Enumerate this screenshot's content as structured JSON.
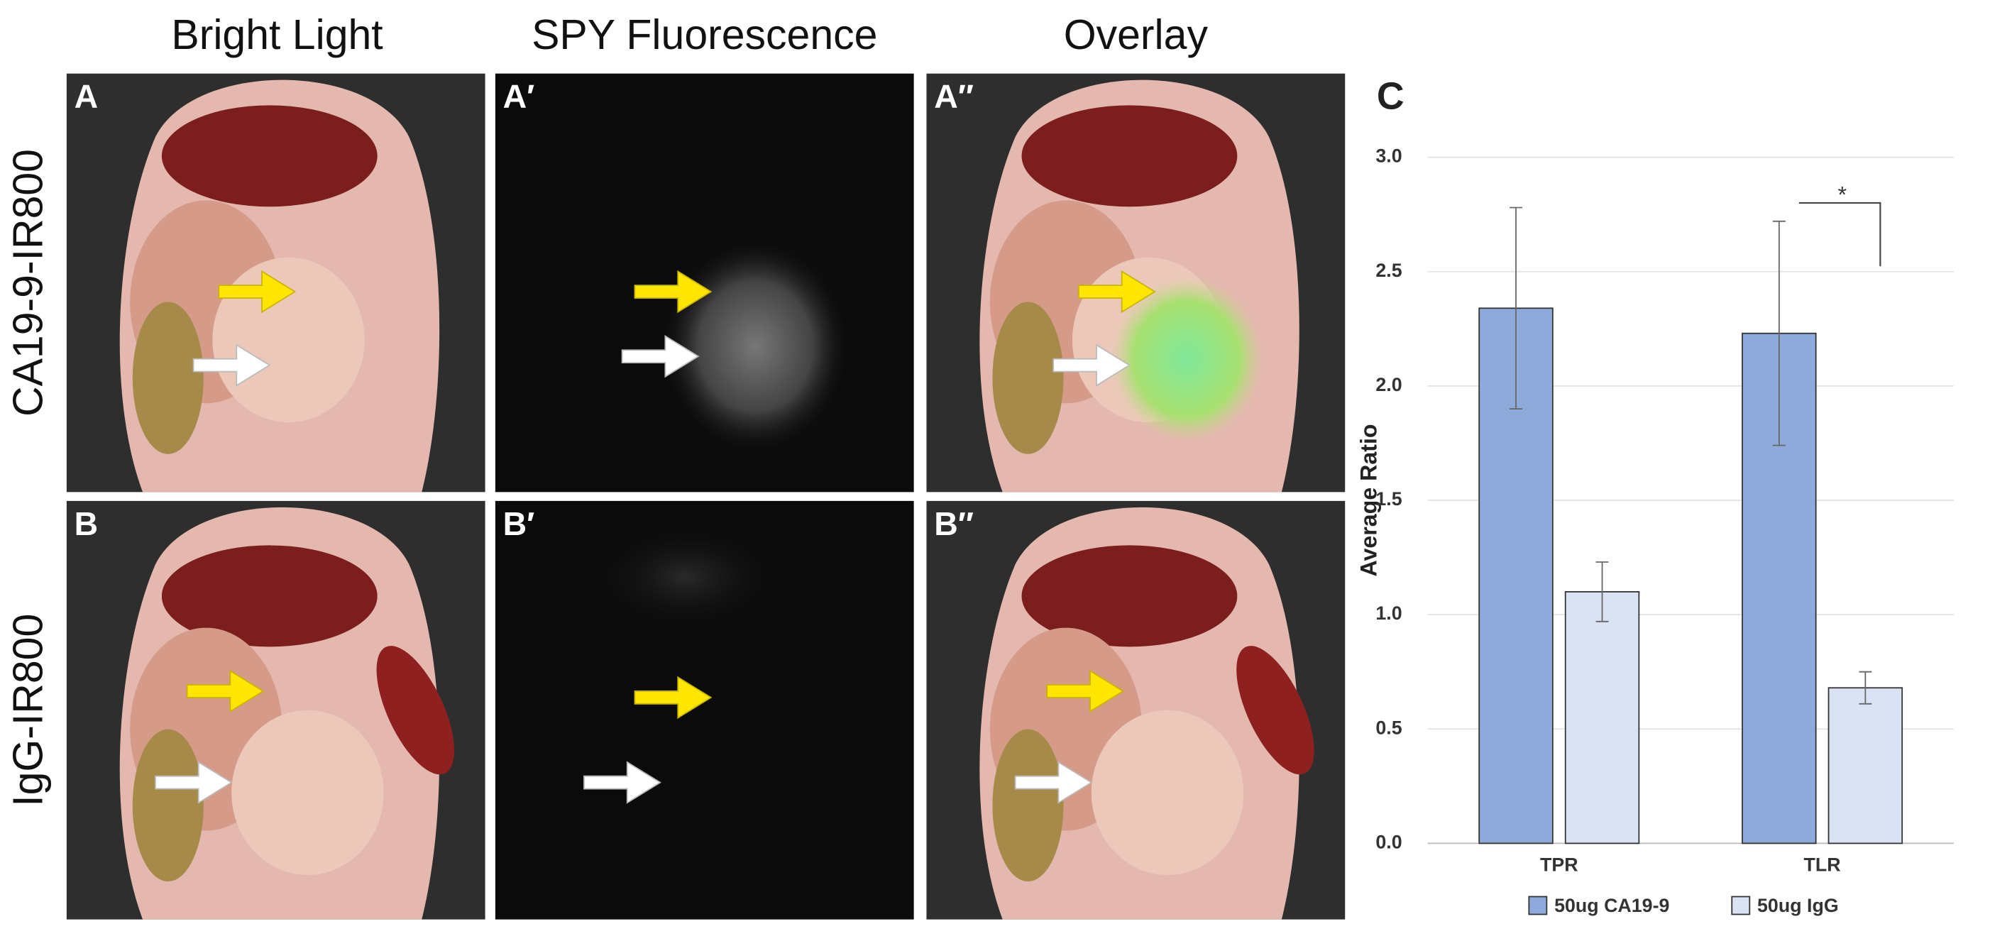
{
  "figure": {
    "columns": [
      "Bright Light",
      "SPY Fluorescence",
      "Overlay"
    ],
    "rows": [
      {
        "label": "CA19-9-IR800",
        "panels": [
          "A",
          "A′",
          "A″"
        ]
      },
      {
        "label": "IgG-IR800",
        "panels": [
          "B",
          "B′",
          "B″"
        ]
      }
    ]
  },
  "chart_data": {
    "type": "bar",
    "panel_label": "C",
    "y_label": "Average Ratio",
    "categories": [
      "TPR",
      "TLR"
    ],
    "series": [
      {
        "name": "50ug CA19-9",
        "color": "#8eaadb",
        "values": [
          2.34,
          2.23
        ],
        "errors": [
          0.44,
          0.49
        ]
      },
      {
        "name": "50ug IgG",
        "color": "#dae3f3",
        "values": [
          1.1,
          0.68
        ],
        "errors": [
          0.13,
          0.07
        ]
      }
    ],
    "ylim": [
      0,
      3
    ],
    "yticks": [
      {
        "value": 0,
        "label": "0.0"
      },
      {
        "value": 0.5,
        "label": "0.5"
      },
      {
        "value": 1,
        "label": "1.0"
      },
      {
        "value": 1.5,
        "label": "1.5"
      },
      {
        "value": 2,
        "label": "2.0"
      },
      {
        "value": 2.5,
        "label": "2.5"
      },
      {
        "value": 3,
        "label": "3.0"
      }
    ],
    "grid": true,
    "significance": "*",
    "legend": "bottom"
  }
}
